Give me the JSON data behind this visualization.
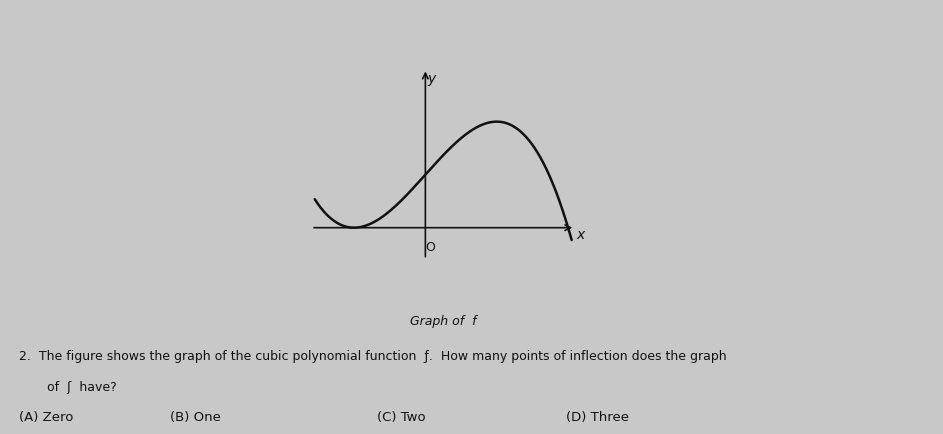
{
  "background_color": "#c8c8c8",
  "graph_bg": "#c8c8c8",
  "curve_color": "#111111",
  "axis_color": "#111111",
  "text_color": "#111111",
  "graph_label": "Graph of f",
  "choice_A": "(A) Zero",
  "choice_B": "(B) One",
  "choice_C": "(C) Two",
  "choice_D": "(D) Three",
  "figsize": [
    9.43,
    4.35
  ],
  "dpi": 100,
  "xlim": [
    -1.6,
    2.1
  ],
  "ylim": [
    -4.5,
    6.0
  ],
  "curve_xmin": -1.55,
  "curve_xmax": 2.05,
  "cubic_a": -1.0,
  "cubic_b": 0.0,
  "cubic_c": 3.0,
  "cubic_d": 2.0
}
